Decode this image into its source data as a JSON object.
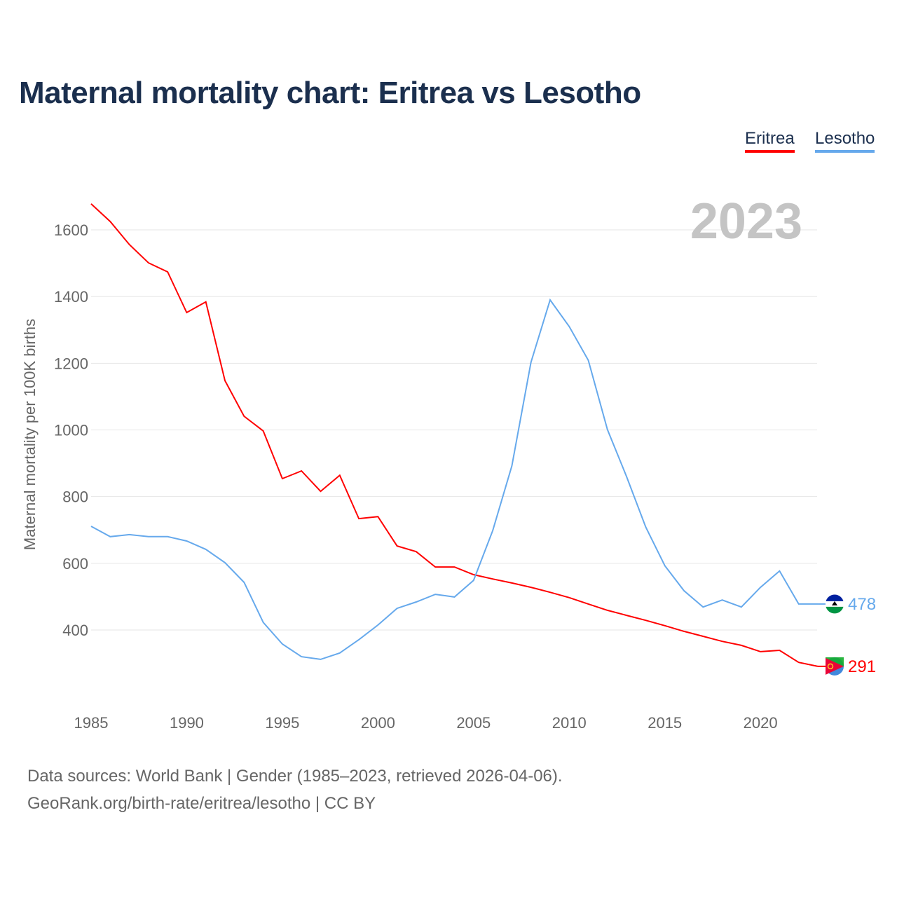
{
  "title": "Maternal mortality chart: Eritrea vs Lesotho",
  "year_label": "2023",
  "source_line1": "Data sources: World Bank | Gender (1985–2023, retrieved 2026-04-06).",
  "source_line2": "GeoRank.org/birth-rate/eritrea/lesotho | CC BY",
  "chart_data": {
    "type": "line",
    "title": "Maternal mortality chart: Eritrea vs Lesotho",
    "xlabel": "",
    "ylabel": "Maternal mortality per 100K births",
    "xlim": [
      1985,
      2023
    ],
    "ylim": [
      200,
      1700
    ],
    "xticks": [
      1985,
      1990,
      1995,
      2000,
      2005,
      2010,
      2015,
      2020
    ],
    "yticks": [
      400,
      600,
      800,
      1000,
      1200,
      1400,
      1600
    ],
    "grid": true,
    "legend_position": "top-right",
    "x": [
      1985,
      1986,
      1987,
      1988,
      1989,
      1990,
      1991,
      1992,
      1993,
      1994,
      1995,
      1996,
      1997,
      1998,
      1999,
      2000,
      2001,
      2002,
      2003,
      2004,
      2005,
      2006,
      2007,
      2008,
      2009,
      2010,
      2011,
      2012,
      2013,
      2014,
      2015,
      2016,
      2017,
      2018,
      2019,
      2020,
      2021,
      2022,
      2023
    ],
    "series": [
      {
        "name": "Eritrea",
        "color": "#ff0000",
        "end_label": "291",
        "values": [
          1678,
          1625,
          1556,
          1501,
          1474,
          1352,
          1384,
          1148,
          1041,
          997,
          854,
          877,
          816,
          864,
          734,
          740,
          652,
          635,
          589,
          589,
          566,
          553,
          541,
          528,
          513,
          497,
          478,
          459,
          444,
          429,
          413,
          396,
          381,
          366,
          354,
          335,
          339,
          303,
          291
        ]
      },
      {
        "name": "Lesotho",
        "color": "#66a9ec",
        "end_label": "478",
        "values": [
          711,
          680,
          686,
          680,
          680,
          667,
          642,
          602,
          543,
          423,
          358,
          320,
          312,
          331,
          371,
          415,
          465,
          484,
          507,
          499,
          549,
          698,
          892,
          1203,
          1390,
          1310,
          1209,
          1001,
          860,
          709,
          593,
          518,
          469,
          490,
          469,
          528,
          577,
          478,
          478
        ]
      }
    ]
  }
}
